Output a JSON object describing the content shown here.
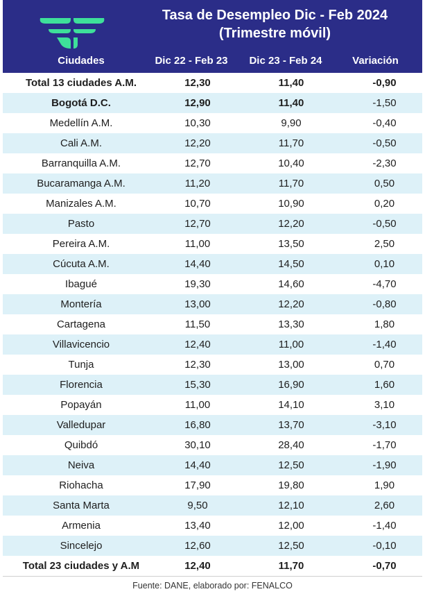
{
  "title_line1": "Tasa de Desempleo Dic - Feb 2024",
  "title_line2": "(Trimestre móvil)",
  "headers": [
    "Ciudades",
    "Dic 22 - Feb 23",
    "Dic 23 - Feb 24",
    "Variación"
  ],
  "rows": [
    {
      "city": "Total 13 ciudades A.M.",
      "a": "12,30",
      "b": "11,40",
      "v": "-0,90",
      "style": "total"
    },
    {
      "city": "Bogotá D.C.",
      "a": "12,90",
      "b": "11,40",
      "v": "-1,50",
      "style": "bogota"
    },
    {
      "city": "Medellín A.M.",
      "a": "10,30",
      "b": "9,90",
      "v": "-0,40"
    },
    {
      "city": "Cali A.M.",
      "a": "12,20",
      "b": "11,70",
      "v": "-0,50"
    },
    {
      "city": "Barranquilla A.M.",
      "a": "12,70",
      "b": "10,40",
      "v": "-2,30"
    },
    {
      "city": "Bucaramanga A.M.",
      "a": "11,20",
      "b": "11,70",
      "v": "0,50"
    },
    {
      "city": "Manizales A.M.",
      "a": "10,70",
      "b": "10,90",
      "v": "0,20"
    },
    {
      "city": "Pasto",
      "a": "12,70",
      "b": "12,20",
      "v": "-0,50"
    },
    {
      "city": "Pereira A.M.",
      "a": "11,00",
      "b": "13,50",
      "v": "2,50"
    },
    {
      "city": "Cúcuta A.M.",
      "a": "14,40",
      "b": "14,50",
      "v": "0,10"
    },
    {
      "city": "Ibagué",
      "a": "19,30",
      "b": "14,60",
      "v": "-4,70"
    },
    {
      "city": "Montería",
      "a": "13,00",
      "b": "12,20",
      "v": "-0,80"
    },
    {
      "city": "Cartagena",
      "a": "11,50",
      "b": "13,30",
      "v": "1,80"
    },
    {
      "city": "Villavicencio",
      "a": "12,40",
      "b": "11,00",
      "v": "-1,40"
    },
    {
      "city": "Tunja",
      "a": "12,30",
      "b": "13,00",
      "v": "0,70"
    },
    {
      "city": "Florencia",
      "a": "15,30",
      "b": "16,90",
      "v": "1,60"
    },
    {
      "city": "Popayán",
      "a": "11,00",
      "b": "14,10",
      "v": "3,10"
    },
    {
      "city": "Valledupar",
      "a": "16,80",
      "b": "13,70",
      "v": "-3,10"
    },
    {
      "city": "Quibdó",
      "a": "30,10",
      "b": "28,40",
      "v": "-1,70"
    },
    {
      "city": "Neiva",
      "a": "14,40",
      "b": "12,50",
      "v": "-1,90"
    },
    {
      "city": "Riohacha",
      "a": "17,90",
      "b": "19,80",
      "v": "1,90"
    },
    {
      "city": "Santa Marta",
      "a": "9,50",
      "b": "12,10",
      "v": "2,60"
    },
    {
      "city": "Armenia",
      "a": "13,40",
      "b": "12,00",
      "v": "-1,40"
    },
    {
      "city": "Sincelejo",
      "a": "12,60",
      "b": "12,50",
      "v": "-0,10"
    },
    {
      "city": "Total 23 ciudades y A.M",
      "a": "12,40",
      "b": "11,70",
      "v": "-0,70",
      "style": "total"
    }
  ],
  "footer": "Fuente: DANE, elaborado por: FENALCO",
  "colors": {
    "header_bg": "#2b2d88",
    "logo": "#3ee09a",
    "alt_row": "#ddf1f8"
  }
}
